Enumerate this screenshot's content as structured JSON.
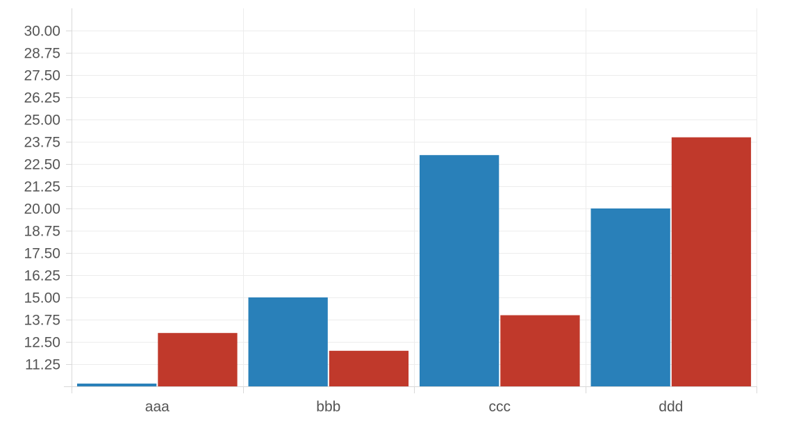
{
  "chart_data": {
    "type": "bar",
    "title": "",
    "xlabel": "",
    "ylabel": "",
    "categories": [
      "aaa",
      "bbb",
      "ccc",
      "ddd"
    ],
    "series": [
      {
        "values": [
          10.0,
          15.0,
          23.0,
          20.0
        ],
        "color": "#2980b9"
      },
      {
        "values": [
          13.0,
          12.0,
          14.0,
          24.0
        ],
        "color": "#c0392b"
      }
    ],
    "ylim": [
      10.0,
      31.25
    ],
    "yticks": [
      "11.25",
      "12.50",
      "13.75",
      "15.00",
      "16.25",
      "17.50",
      "18.75",
      "20.00",
      "21.25",
      "22.50",
      "23.75",
      "25.00",
      "26.25",
      "27.50",
      "28.75",
      "30.00"
    ],
    "grid": true,
    "legend": "none"
  }
}
